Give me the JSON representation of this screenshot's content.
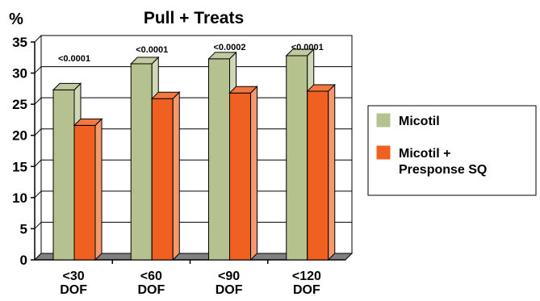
{
  "chart_data": {
    "type": "bar",
    "title": "Pull + Treats",
    "ylabel": "%",
    "ylim": [
      0,
      35
    ],
    "yticks": [
      0,
      5,
      10,
      15,
      20,
      25,
      30,
      35
    ],
    "grid": true,
    "legend_position": "right",
    "three_d": true,
    "categories": [
      [
        "<30",
        "DOF"
      ],
      [
        "<60",
        "DOF"
      ],
      [
        "<90",
        "DOF"
      ],
      [
        "<120",
        "DOF"
      ]
    ],
    "series": [
      {
        "name": "Micotil",
        "values": [
          27.3,
          31.5,
          32.3,
          32.8
        ],
        "color": "#b5c18e"
      },
      {
        "name": "Micotil + Presponse SQ",
        "legend_lines": [
          "Micotil +",
          "Presponse SQ"
        ],
        "values": [
          21.6,
          25.9,
          26.8,
          27.1
        ],
        "color": "#f06020"
      }
    ],
    "annotations": [
      "<0.0001",
      "<0.0001",
      "<0.0002",
      "<0.0001"
    ]
  }
}
